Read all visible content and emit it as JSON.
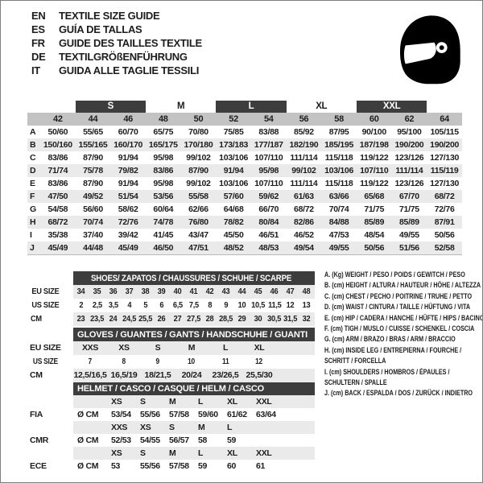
{
  "header": {
    "languages": [
      {
        "code": "EN",
        "title": "TEXTILE SIZE GUIDE"
      },
      {
        "code": "ES",
        "title": "GUÍA DE TALLAS"
      },
      {
        "code": "FR",
        "title": "GUIDE DES TAILLES TEXTILE"
      },
      {
        "code": "DE",
        "title": "TEXTILGRÖßENFÜHRUNG"
      },
      {
        "code": "IT",
        "title": "GUIDA ALLE TAGLIE TESSILI"
      }
    ],
    "logo_icon": "racing-helmet-icon"
  },
  "colors": {
    "dark_bar": "#3d3d3d",
    "header_gray": "#c3c3c3",
    "stripe": "#eaeaea",
    "text": "#1d1d1d"
  },
  "main_table": {
    "bands": [
      {
        "label": "",
        "span": 2,
        "variant": "none"
      },
      {
        "label": "S",
        "span": 2,
        "variant": "dark"
      },
      {
        "label": "M",
        "span": 2,
        "variant": "plain"
      },
      {
        "label": "L",
        "span": 2,
        "variant": "dark"
      },
      {
        "label": "XL",
        "span": 2,
        "variant": "plain"
      },
      {
        "label": "XXL",
        "span": 2,
        "variant": "dark"
      },
      {
        "label": "",
        "span": 1,
        "variant": "none"
      }
    ],
    "columns": [
      "42",
      "44",
      "46",
      "48",
      "50",
      "52",
      "54",
      "56",
      "58",
      "60",
      "62",
      "64"
    ],
    "rows": [
      {
        "label": "A",
        "values": [
          "50/60",
          "55/65",
          "60/70",
          "65/75",
          "70/80",
          "75/85",
          "83/88",
          "85/92",
          "87/95",
          "90/100",
          "95/100",
          "105/115"
        ]
      },
      {
        "label": "B",
        "values": [
          "150/160",
          "155/165",
          "160/170",
          "165/175",
          "170/180",
          "173/183",
          "177/187",
          "182/190",
          "185/195",
          "187/198",
          "190/200",
          "190/200"
        ]
      },
      {
        "label": "C",
        "values": [
          "83/86",
          "87/90",
          "91/94",
          "95/98",
          "99/102",
          "103/106",
          "107/110",
          "111/114",
          "115/118",
          "119/122",
          "123/126",
          "127/130"
        ]
      },
      {
        "label": "D",
        "values": [
          "71/74",
          "75/78",
          "79/82",
          "83/86",
          "87/90",
          "91/94",
          "95/98",
          "99/102",
          "103/106",
          "107/110",
          "111/114",
          "115/119"
        ]
      },
      {
        "label": "E",
        "values": [
          "83/86",
          "87/90",
          "91/94",
          "95/98",
          "99/102",
          "103/106",
          "107/110",
          "111/114",
          "115/118",
          "119/122",
          "123/126",
          "127/130"
        ]
      },
      {
        "label": "F",
        "values": [
          "47/50",
          "49/52",
          "51/54",
          "53/56",
          "55/58",
          "57/60",
          "59/62",
          "61/63",
          "63/66",
          "65/68",
          "67/70",
          "68/72"
        ]
      },
      {
        "label": "G",
        "values": [
          "54/58",
          "56/60",
          "58/62",
          "60/64",
          "62/66",
          "64/68",
          "66/70",
          "68/72",
          "70/74",
          "71/75",
          "71/75",
          "72/76"
        ]
      },
      {
        "label": "H",
        "values": [
          "68/72",
          "70/74",
          "72/76",
          "74/78",
          "76/80",
          "78/82",
          "80/84",
          "82/86",
          "84/88",
          "85/89",
          "85/89",
          "87/91"
        ]
      },
      {
        "label": "I",
        "values": [
          "35/38",
          "37/40",
          "39/42",
          "41/45",
          "43/47",
          "45/50",
          "46/51",
          "46/52",
          "47/53",
          "48/54",
          "49/55",
          "50/56"
        ]
      },
      {
        "label": "J",
        "values": [
          "45/49",
          "44/48",
          "45/49",
          "46/50",
          "47/51",
          "48/52",
          "48/53",
          "49/54",
          "49/55",
          "50/56",
          "51/56",
          "52/58"
        ]
      }
    ]
  },
  "shoes_table": {
    "title": "SHOES/ ZAPATOS / CHAUSSURES / SCHUHE / SCARPE",
    "rows": [
      {
        "label": "EU SIZE",
        "stripe": true,
        "values": [
          "34",
          "35",
          "36",
          "37",
          "38",
          "39",
          "40",
          "41",
          "42",
          "43",
          "44",
          "45",
          "46",
          "47",
          "48"
        ]
      },
      {
        "label": "US SIZE",
        "stripe": false,
        "values": [
          "2",
          "2,5",
          "3,5",
          "4",
          "5",
          "6",
          "6,5",
          "7,5",
          "8",
          "9",
          "10",
          "10,5",
          "11,5",
          "12",
          "13"
        ]
      },
      {
        "label": "CM",
        "stripe": true,
        "values": [
          "23",
          "23,5",
          "24",
          "24,5",
          "25,5",
          "26",
          "27",
          "27,5",
          "28",
          "28,5",
          "29",
          "30",
          "30,5",
          "31,5",
          "32"
        ]
      }
    ]
  },
  "gloves_table": {
    "title": "GLOVES / GUANTES / GANTS / HANDSCHUHE / GUANTI",
    "rows": [
      {
        "label": "EU SIZE",
        "stripe": true,
        "values": [
          "XXS",
          "XS",
          "S",
          "M",
          "L",
          "XL"
        ]
      },
      {
        "label": "US SIZE",
        "stripe": false,
        "values": [
          "7",
          "8",
          "9",
          "10",
          "11",
          "12"
        ]
      },
      {
        "label": "CM",
        "stripe": true,
        "values": [
          "12,5/16,5",
          "16,5/19",
          "18/21,5",
          "20/24",
          "23/26,5",
          "25,5/30"
        ]
      }
    ]
  },
  "helmet_table": {
    "title": "HELMET / CASCO / CASQUE / HELM / CASCO",
    "rows": [
      {
        "label": "",
        "unit": "",
        "stripe": true,
        "values": [
          "XS",
          "S",
          "M",
          "L",
          "XL",
          "XXL"
        ]
      },
      {
        "label": "FIA",
        "unit": "Ø CM",
        "stripe": false,
        "values": [
          "53/54",
          "55/56",
          "57/58",
          "59/60",
          "61/62",
          "63/64"
        ]
      },
      {
        "label": "",
        "unit": "",
        "stripe": true,
        "values": [
          "XXS",
          "XS",
          "S",
          "M",
          "L",
          ""
        ]
      },
      {
        "label": "CMR",
        "unit": "Ø CM",
        "stripe": false,
        "values": [
          "52/53",
          "54/55",
          "56/57",
          "58",
          "59",
          ""
        ]
      },
      {
        "label": "",
        "unit": "",
        "stripe": true,
        "values": [
          "XS",
          "S",
          "M",
          "L",
          "XL",
          "XXL"
        ]
      },
      {
        "label": "ECE",
        "unit": "Ø CM",
        "stripe": false,
        "values": [
          "53",
          "55/56",
          "57/58",
          "59",
          "60",
          "61"
        ]
      }
    ]
  },
  "legend": {
    "lines": [
      "A. (Kg) WEIGHT / PESO / POIDS / GEWITCH / PESO",
      "B. (cm) HEIGHT / ALTURA / HAUTEUR / HÖHE / ALTEZZA",
      "C. (cm) CHEST / PECHO / POITRINE / TRUHE / PETTO",
      "D. (cm) WAIST / CINTURA / TAILLE / HÜFTUNG / VITA",
      "E. (cm) HIP / CADERA / HANCHE / HÜFTE / HIPS / BACINO",
      "F. (cm) TIGH / MUSLO / CUISSE / SCHENKEL / COSCIA",
      "G. (cm) ARM / BRAZO / BRAS / ARM / BRACCIO",
      "H. (cm) INSIDE LEG / ENTREPIERNA / FOURCHE /",
      "SCHRITT / FORCELLA",
      "I. (cm) SHOULDERS / HOMBROS / ÉPAULES /",
      "SCHULTERN / SPALLE",
      "J. (cm) BACK / ESPALDA / DOS / ZURÜCK / INDIETRO"
    ]
  }
}
